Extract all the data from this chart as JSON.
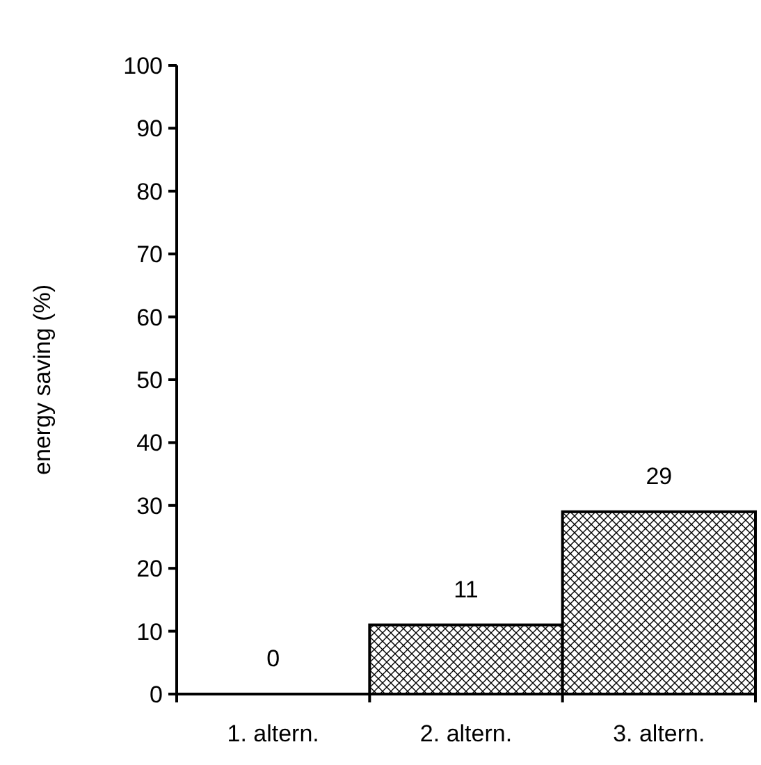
{
  "chart_data": {
    "type": "bar",
    "ylabel": "energy saving (%)",
    "categories": [
      "1. altern.",
      "2. altern.",
      "3. altern."
    ],
    "values": [
      0,
      11,
      29
    ],
    "color": "#000000",
    "ylim": [
      0,
      100
    ],
    "yticks": [
      0,
      10,
      20,
      30,
      40,
      50,
      60,
      70,
      80,
      90,
      100
    ],
    "data_labels": true,
    "grid": false
  }
}
